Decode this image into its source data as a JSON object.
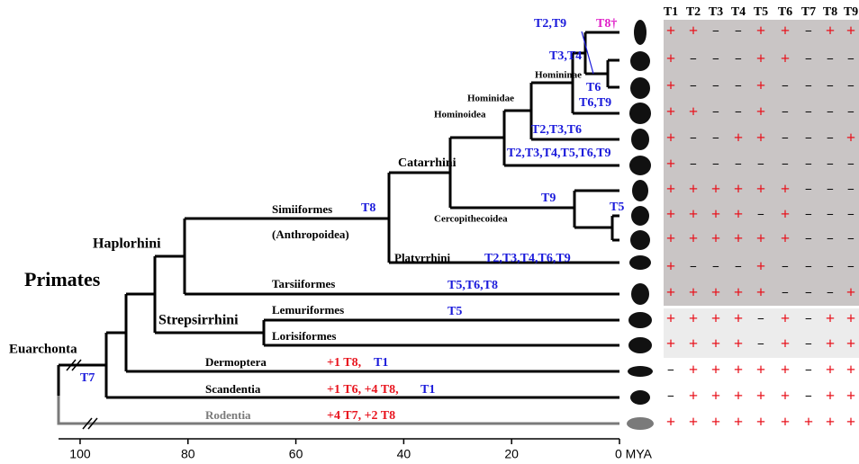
{
  "axis": {
    "xlim": [
      104,
      0
    ],
    "xticks": [
      100,
      80,
      60,
      40,
      20,
      {
        "value": 0,
        "label": "0 MYA"
      }
    ]
  },
  "clades": [
    "Euarchonta",
    "Primates",
    "Haplorhini",
    "Strepsirrhini",
    "Simiiformes",
    "(Anthropoidea)",
    "Catarrhini",
    "Hominoidea",
    "Hominidae",
    "Homininae",
    "Cercopithecoidea",
    "Platyrrhini",
    "Tarsiiformes",
    "Lemuriformes",
    "Lorisiformes",
    "Dermoptera",
    "Scandentia",
    "Rodentia"
  ],
  "annotations": [
    "T2,T9",
    "T8†",
    "T3,T4",
    "T6",
    "T6,T9",
    "T2,T3,T6",
    "T2,T3,T4,T5,T6,T9",
    "T9",
    "T5",
    "T8",
    "T2,T3,T4,T6,T9",
    "T5,T6,T8",
    "T5",
    "T7",
    "+1 T8,",
    "T1",
    "+1 T6, +4 T8,",
    "T1",
    "+4 T7, +2 T8"
  ],
  "table": {
    "header": [
      "T1",
      "T2",
      "T3",
      "T4",
      "T5",
      "T6",
      "T7",
      "T8",
      "T9"
    ],
    "rows": [
      [
        "+",
        "+",
        "−",
        "−",
        "+",
        "+",
        "−",
        "+",
        "+"
      ],
      [
        "+",
        "−",
        "−",
        "−",
        "+",
        "+",
        "−",
        "−",
        "−"
      ],
      [
        "+",
        "−",
        "−",
        "−",
        "+",
        "−",
        "−",
        "−",
        "−"
      ],
      [
        "+",
        "+",
        "−",
        "−",
        "+",
        "−",
        "−",
        "−",
        "−"
      ],
      [
        "+",
        "−",
        "−",
        "+",
        "+",
        "−",
        "−",
        "−",
        "+"
      ],
      [
        "+",
        "−",
        "−",
        "−",
        "−",
        "−",
        "−",
        "−",
        "−"
      ],
      [
        "+",
        "+",
        "+",
        "+",
        "+",
        "+",
        "−",
        "−",
        "−"
      ],
      [
        "+",
        "+",
        "+",
        "+",
        "−",
        "+",
        "−",
        "−",
        "−"
      ],
      [
        "+",
        "+",
        "+",
        "+",
        "+",
        "+",
        "−",
        "−",
        "−"
      ],
      [
        "+",
        "−",
        "−",
        "−",
        "+",
        "−",
        "−",
        "−",
        "−"
      ],
      [
        "+",
        "+",
        "+",
        "+",
        "+",
        "−",
        "−",
        "−",
        "+"
      ],
      [
        "+",
        "+",
        "+",
        "+",
        "−",
        "+",
        "−",
        "+",
        "+"
      ],
      [
        "+",
        "+",
        "+",
        "+",
        "−",
        "+",
        "−",
        "+",
        "+"
      ],
      [
        "−",
        "+",
        "+",
        "+",
        "+",
        "+",
        "−",
        "+",
        "+"
      ],
      [
        "−",
        "+",
        "+",
        "+",
        "+",
        "+",
        "−",
        "+",
        "+"
      ],
      [
        "+",
        "+",
        "+",
        "+",
        "+",
        "+",
        "+",
        "+",
        "+"
      ]
    ]
  }
}
